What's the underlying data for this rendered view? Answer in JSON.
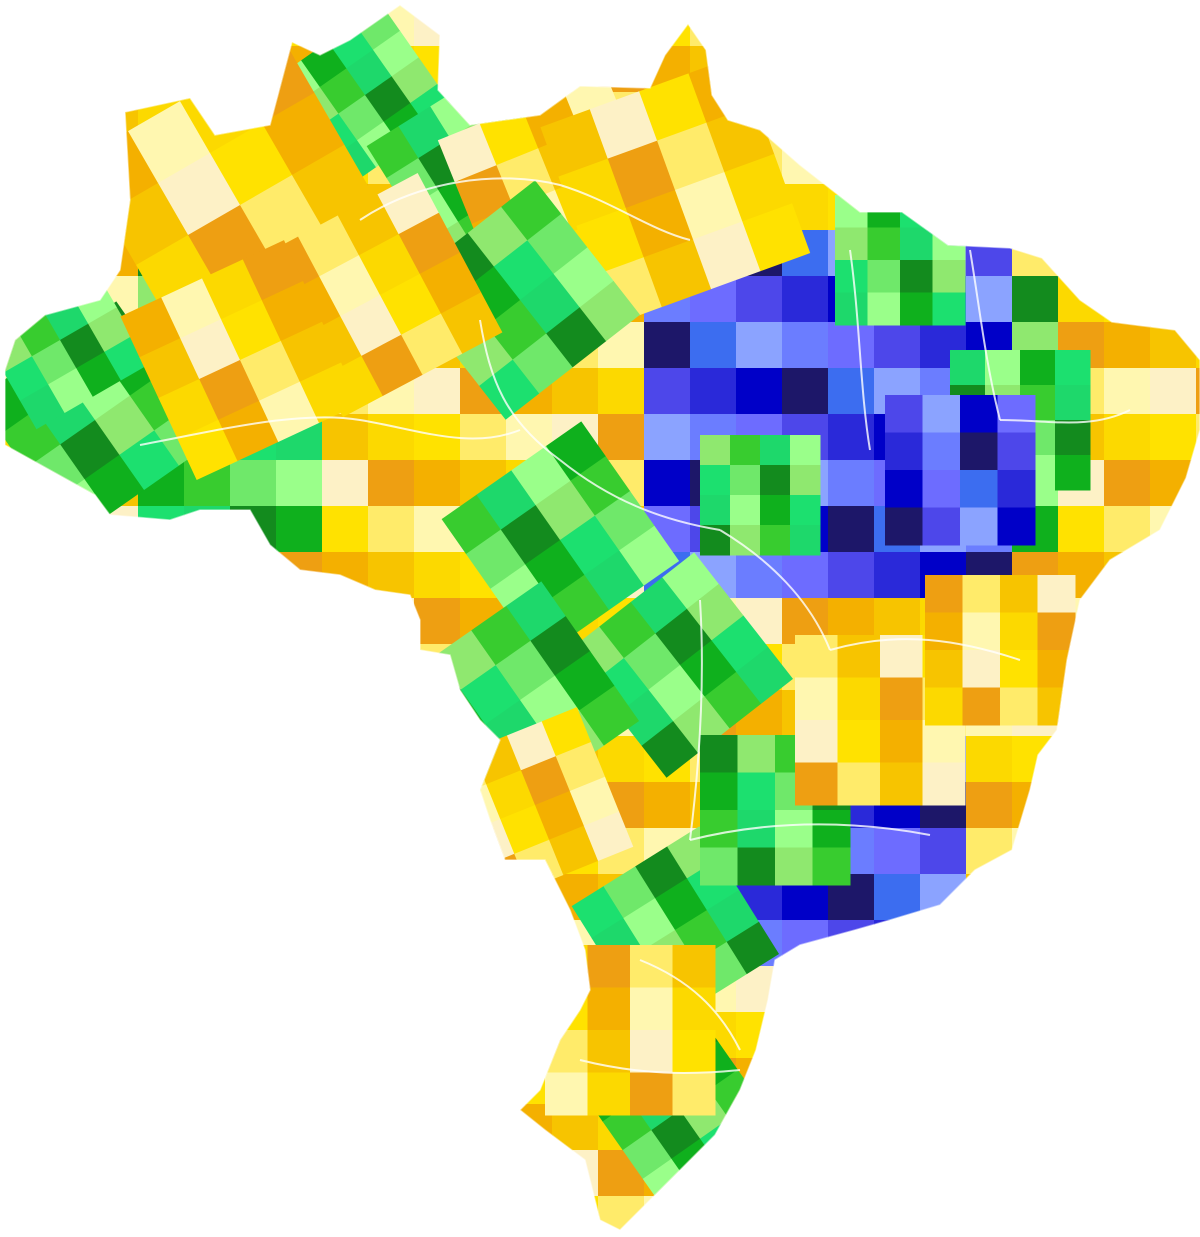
{
  "map": {
    "subject": "Brazil",
    "background_color": "#ffffff",
    "border_color": "#ffffff",
    "palettes": {
      "yellow_orange": [
        "#fff7b0",
        "#ffeb6a",
        "#ffe200",
        "#fcd900",
        "#f7c400",
        "#f4b000",
        "#ee9f12",
        "#fdf1c6"
      ],
      "green": [
        "#9aff8a",
        "#6fe86a",
        "#38cc2f",
        "#0fb01d",
        "#138b1e",
        "#1ed86b",
        "#1ce06f",
        "#8fe86f"
      ],
      "blue": [
        "#0000c8",
        "#2a29d9",
        "#4d47ea",
        "#6d6cff",
        "#6b7dff",
        "#8ba3ff",
        "#3c6df0",
        "#1d1769"
      ]
    }
  }
}
